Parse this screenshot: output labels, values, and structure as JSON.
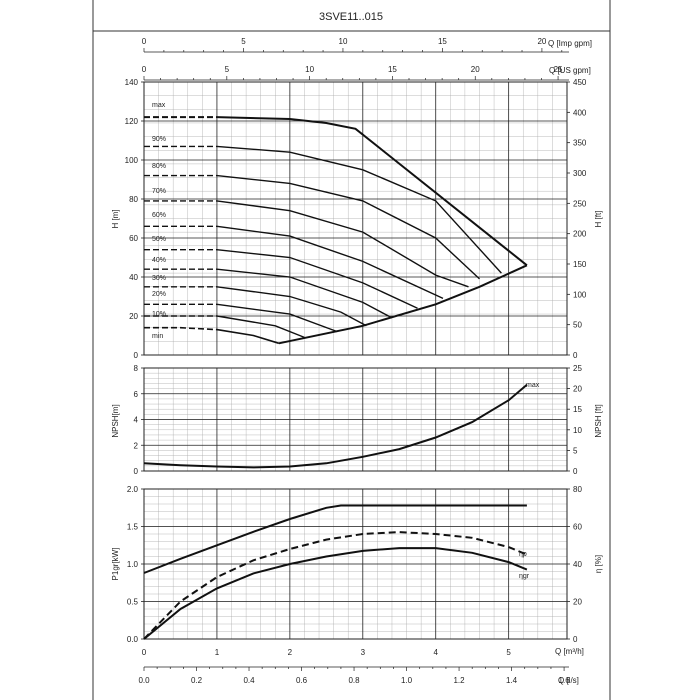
{
  "title": "3SVE11..015",
  "axes": {
    "q_imp": "Q [Imp gpm]",
    "q_us": "Q [US gpm]",
    "h_m": "H [m]",
    "h_ft": "H [ft]",
    "npsh_m": "NPSH[m]",
    "npsh_ft": "NPSH [ft]",
    "p1": "P1gr[kW]",
    "eta": "η [%]",
    "q_m3h": "Q [m³/h]",
    "q_ls": "Q [l/s]"
  },
  "chart_data": [
    {
      "type": "line",
      "name": "head",
      "xlabel": "Q [m³/h]",
      "ylabel": "H [m]",
      "ylabel_right": "H [ft]",
      "xlim": [
        0,
        5.8
      ],
      "ylim": [
        0,
        140
      ],
      "y_ticks": [
        0,
        20,
        40,
        60,
        80,
        100,
        120,
        140
      ],
      "y2_ticks": [
        0,
        50,
        100,
        150,
        200,
        250,
        300,
        350,
        400,
        450
      ],
      "top_axis_imp_gpm": [
        0,
        5,
        10,
        15,
        20
      ],
      "top_axis_us_gpm": [
        0,
        5,
        10,
        15,
        20,
        25
      ],
      "series": [
        {
          "name": "max",
          "x": [
            0,
            1.0,
            2.0,
            2.5,
            2.9,
            5.25
          ],
          "y": [
            122,
            122,
            121,
            119,
            116,
            46
          ]
        },
        {
          "name": "90%",
          "x": [
            0,
            1.0,
            2.0,
            3.0,
            4.0,
            4.9
          ],
          "y": [
            107,
            107,
            104,
            95,
            79,
            42
          ]
        },
        {
          "name": "80%",
          "x": [
            0,
            1.0,
            2.0,
            3.0,
            4.0,
            4.6
          ],
          "y": [
            92,
            92,
            88,
            79,
            60,
            39
          ]
        },
        {
          "name": "70%",
          "x": [
            0,
            1.0,
            2.0,
            3.0,
            4.0,
            4.45
          ],
          "y": [
            79,
            79,
            74,
            63,
            41,
            35
          ]
        },
        {
          "name": "60%",
          "x": [
            0,
            1.0,
            2.0,
            3.0,
            4.1
          ],
          "y": [
            66,
            66,
            61,
            48,
            29
          ]
        },
        {
          "name": "50%",
          "x": [
            0,
            1.0,
            2.0,
            3.0,
            3.75
          ],
          "y": [
            54,
            54,
            50,
            37,
            24
          ]
        },
        {
          "name": "40%",
          "x": [
            0,
            1.0,
            2.0,
            3.0,
            3.4
          ],
          "y": [
            44,
            44,
            40,
            27,
            19
          ]
        },
        {
          "name": "30%",
          "x": [
            0,
            1.0,
            2.0,
            2.7,
            3.05
          ],
          "y": [
            35,
            35,
            30,
            22,
            15
          ]
        },
        {
          "name": "20%",
          "x": [
            0,
            1.0,
            2.0,
            2.65
          ],
          "y": [
            26,
            26,
            21,
            12
          ]
        },
        {
          "name": "10%",
          "x": [
            0,
            1.0,
            1.8,
            2.2
          ],
          "y": [
            20,
            20,
            15,
            9
          ]
        },
        {
          "name": "min",
          "x": [
            0,
            0.5,
            1.0,
            1.5,
            1.85
          ],
          "y": [
            14,
            14,
            13,
            10,
            6
          ]
        },
        {
          "name": "limit",
          "x": [
            1.85,
            3.0,
            4.0,
            4.6,
            5.25
          ],
          "y": [
            6,
            15,
            26,
            35,
            46
          ]
        }
      ]
    },
    {
      "type": "line",
      "name": "npsh",
      "xlabel": "Q [m³/h]",
      "ylabel": "NPSH[m]",
      "ylabel_right": "NPSH [ft]",
      "xlim": [
        0,
        5.8
      ],
      "ylim": [
        0,
        8
      ],
      "y_ticks": [
        0,
        2,
        4,
        6,
        8
      ],
      "y2_ticks": [
        0,
        5,
        10,
        15,
        20,
        25
      ],
      "series": [
        {
          "name": "max",
          "x": [
            0,
            0.5,
            1.0,
            1.5,
            2.0,
            2.5,
            3.0,
            3.5,
            4.0,
            4.5,
            5.0,
            5.25
          ],
          "y": [
            0.6,
            0.45,
            0.35,
            0.28,
            0.35,
            0.6,
            1.1,
            1.7,
            2.6,
            3.8,
            5.5,
            6.7
          ]
        }
      ]
    },
    {
      "type": "line",
      "name": "power-efficiency",
      "xlabel": "Q [m³/h]",
      "ylabel": "P1gr[kW]",
      "ylabel_right": "η [%]",
      "xlim": [
        0,
        5.8
      ],
      "ylim": [
        0,
        2.0
      ],
      "y_ticks": [
        0.0,
        0.5,
        1.0,
        1.5,
        2.0
      ],
      "y2_ticks": [
        0,
        20,
        40,
        60,
        80
      ],
      "x_ticks_m3h": [
        0,
        1,
        2,
        3,
        4,
        5
      ],
      "x_ticks_ls": [
        "0.0",
        "0.2",
        "0.4",
        "0.6",
        "0.8",
        "1.0",
        "1.2",
        "1.4",
        "1.6"
      ],
      "series": [
        {
          "name": "P1",
          "x": [
            0,
            0.5,
            1.0,
            1.5,
            2.0,
            2.5,
            2.7,
            3.0,
            4.0,
            5.25
          ],
          "y": [
            0.88,
            1.07,
            1.25,
            1.43,
            1.6,
            1.75,
            1.78,
            1.78,
            1.78,
            1.78
          ]
        },
        {
          "name": "ηp",
          "x": [
            0,
            0.5,
            1.0,
            1.5,
            2.0,
            2.5,
            3.0,
            3.5,
            4.0,
            4.5,
            5.0,
            5.25
          ],
          "y": [
            0,
            20,
            33,
            42,
            48,
            53,
            56,
            57,
            56,
            54,
            49,
            45
          ]
        },
        {
          "name": "ηgr",
          "x": [
            0,
            0.5,
            1.0,
            1.5,
            2.0,
            2.5,
            3.0,
            3.5,
            4.0,
            4.5,
            5.0,
            5.25
          ],
          "y": [
            0,
            16,
            27,
            35,
            40,
            44,
            47,
            48.5,
            48.5,
            46,
            41,
            37
          ]
        }
      ]
    }
  ],
  "labels": {
    "max": "max",
    "p90": "90%",
    "p80": "80%",
    "p70": "70%",
    "p60": "60%",
    "p50": "50%",
    "p40": "40%",
    "p30": "30%",
    "p20": "20%",
    "p10": "10%",
    "min": "min",
    "npsh_max": "max",
    "eta_p": "ηp",
    "eta_gr": "ηgr"
  }
}
